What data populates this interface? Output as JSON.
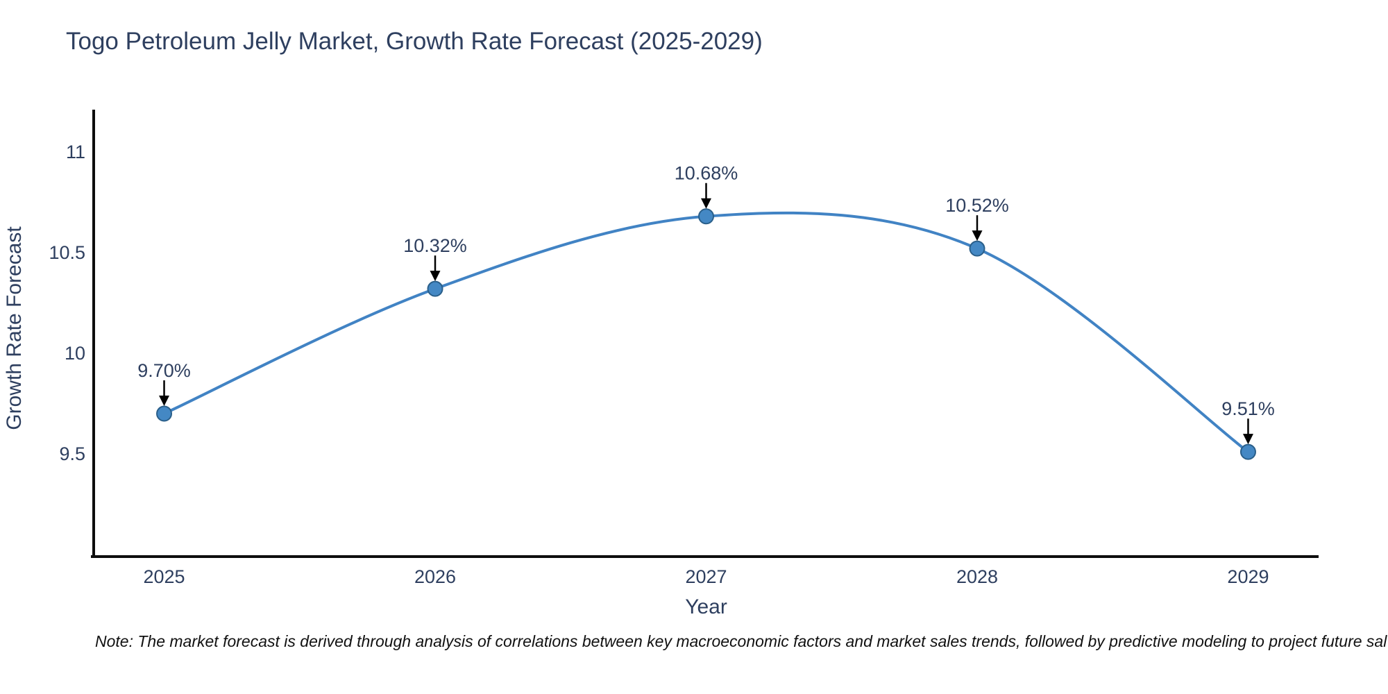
{
  "title": "Togo Petroleum Jelly Market, Growth Rate Forecast (2025-2029)",
  "note": "Note: The market forecast is derived through analysis of correlations between key macroeconomic factors and market sales trends, followed by predictive modeling to project future sal",
  "colors": {
    "line": "#4183c4",
    "marker_fill": "#4488c4",
    "marker_edge": "#2a5f8a",
    "text": "#2e3f5f",
    "axis_line": "#0d0d0d",
    "annotation_arrow": "#000000",
    "background": "#ffffff"
  },
  "chart_data": {
    "type": "line",
    "line_shape": "spline",
    "title": "Togo Petroleum Jelly Market, Growth Rate Forecast (2025-2029)",
    "xlabel": "Year",
    "ylabel": "Growth Rate Forecast",
    "x": [
      2025,
      2026,
      2027,
      2028,
      2029
    ],
    "y": [
      9.7,
      10.32,
      10.68,
      10.52,
      9.51
    ],
    "point_labels": [
      "9.70%",
      "10.32%",
      "10.68%",
      "10.52%",
      "9.51%"
    ],
    "xtick_values": [
      2025,
      2026,
      2027,
      2028,
      2029
    ],
    "xtick_labels": [
      "2025",
      "2026",
      "2027",
      "2028",
      "2029"
    ],
    "ytick_values": [
      9.5,
      10,
      10.5,
      11
    ],
    "ytick_labels": [
      "9.5",
      "10",
      "10.5",
      "11"
    ],
    "xlim": [
      2024.74,
      2029.26
    ],
    "ylim": [
      8.99,
      11.21
    ],
    "grid": false,
    "legend": false
  }
}
